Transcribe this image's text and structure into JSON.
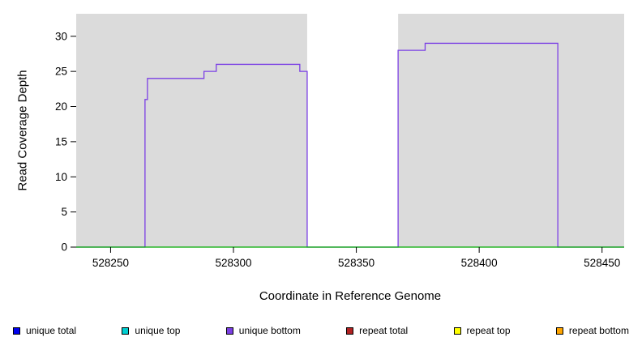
{
  "chart_data": {
    "type": "line",
    "title": "",
    "xlabel": "Coordinate in Reference Genome",
    "ylabel": "Read Coverage Depth",
    "xlim": [
      528236,
      528459
    ],
    "ylim": [
      0,
      33.2
    ],
    "x_ticks": [
      528250,
      528300,
      528350,
      528400,
      528450
    ],
    "y_ticks": [
      0,
      5,
      10,
      15,
      20,
      25,
      30
    ],
    "plot_bg_color": "#DBDBDB",
    "grid": false,
    "legend_position": "bottom",
    "gap_band": {
      "x0": 528330,
      "x1": 528367,
      "color": "#FFFFFF"
    },
    "series": [
      {
        "name": "unique bottom coverage",
        "color": "#7B3FE4",
        "width": 1.3,
        "points": [
          [
            528236,
            0
          ],
          [
            528264,
            0
          ],
          [
            528264,
            21
          ],
          [
            528265,
            21
          ],
          [
            528265,
            24
          ],
          [
            528288,
            24
          ],
          [
            528288,
            25
          ],
          [
            528293,
            25
          ],
          [
            528293,
            26
          ],
          [
            528327,
            26
          ],
          [
            528327,
            25
          ],
          [
            528330,
            25
          ],
          [
            528330,
            0
          ],
          [
            528367,
            0
          ],
          [
            528367,
            28
          ],
          [
            528378,
            28
          ],
          [
            528378,
            29
          ],
          [
            528432,
            29
          ],
          [
            528432,
            0
          ],
          [
            528459,
            0
          ]
        ]
      },
      {
        "name": "zero baseline",
        "color": "#00AA00",
        "width": 1.2,
        "points": [
          [
            528236,
            0
          ],
          [
            528459,
            0
          ]
        ]
      }
    ],
    "legend": [
      {
        "label": "unique total",
        "color": "#0000EE"
      },
      {
        "label": "unique top",
        "color": "#00CED1"
      },
      {
        "label": "unique bottom",
        "color": "#7B3FE4"
      },
      {
        "label": "repeat total",
        "color": "#B22222"
      },
      {
        "label": "repeat top",
        "color": "#FFFF00"
      },
      {
        "label": "repeat bottom",
        "color": "#FFA500"
      }
    ]
  }
}
